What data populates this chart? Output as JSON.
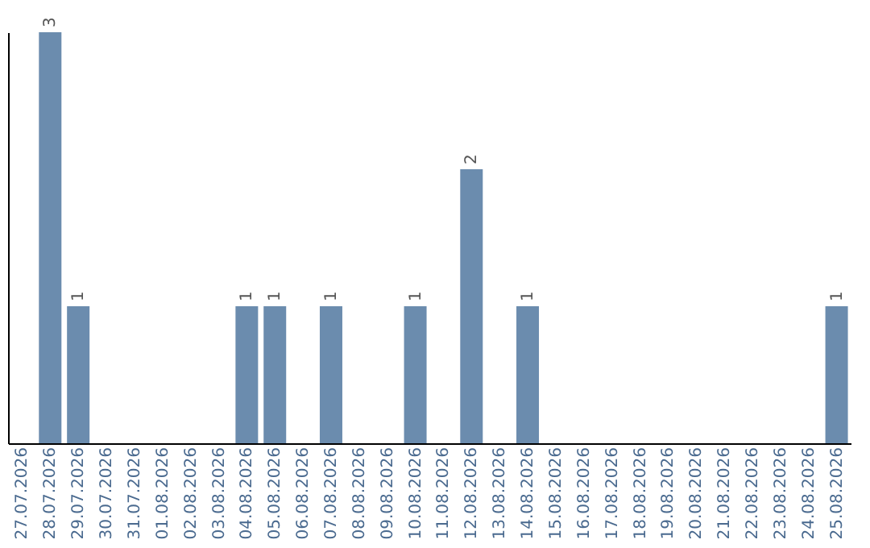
{
  "chart_data": {
    "type": "bar",
    "categories": [
      "27.07.2026",
      "28.07.2026",
      "29.07.2026",
      "30.07.2026",
      "31.07.2026",
      "01.08.2026",
      "02.08.2026",
      "03.08.2026",
      "04.08.2026",
      "05.08.2026",
      "06.08.2026",
      "07.08.2026",
      "08.08.2026",
      "09.08.2026",
      "10.08.2026",
      "11.08.2026",
      "12.08.2026",
      "13.08.2026",
      "14.08.2026",
      "15.08.2026",
      "16.08.2026",
      "17.08.2026",
      "18.08.2026",
      "19.08.2026",
      "20.08.2026",
      "21.08.2026",
      "22.08.2026",
      "23.08.2026",
      "24.08.2026",
      "25.08.2026"
    ],
    "values": [
      0,
      3,
      1,
      0,
      0,
      0,
      0,
      0,
      1,
      1,
      0,
      1,
      0,
      0,
      1,
      0,
      2,
      0,
      1,
      0,
      0,
      0,
      0,
      0,
      0,
      0,
      0,
      0,
      0,
      1
    ],
    "value_labels": [
      null,
      "3",
      "1",
      null,
      null,
      null,
      null,
      null,
      "1",
      "1",
      null,
      "1",
      null,
      null,
      "1",
      null,
      "2",
      null,
      "1",
      null,
      null,
      null,
      null,
      null,
      null,
      null,
      null,
      null,
      null,
      "1"
    ],
    "color": "#6b8cae",
    "tick_labels": "x"
  }
}
